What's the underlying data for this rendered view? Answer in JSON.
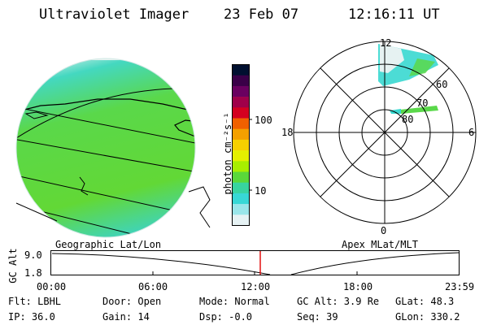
{
  "header": {
    "title": "Ultraviolet Imager",
    "date": "23 Feb 07",
    "time": "12:16:11 UT"
  },
  "colorbar": {
    "unit_label": "photon cm⁻²s⁻¹",
    "ticks": [
      "100",
      "10"
    ],
    "colors": [
      "#001030",
      "#3a0048",
      "#6a0060",
      "#a0004a",
      "#d40020",
      "#f06000",
      "#f4a000",
      "#f6d000",
      "#e4f000",
      "#a8ee00",
      "#5ad83a",
      "#38d4a0",
      "#38d8d6",
      "#9ae6ea",
      "#e6f2f4"
    ]
  },
  "panels": {
    "geo_label": "Geographic Lat/Lon",
    "apex_label": "Apex MLat/MLT"
  },
  "polar": {
    "mlt_top": "12",
    "mlt_left": "18",
    "mlt_right": "6",
    "mlt_bottom": "0",
    "lat_rings": [
      "60",
      "70",
      "80"
    ]
  },
  "altitude_plot": {
    "ylabel": "GC Alt",
    "y_ticks": [
      "9.0",
      "1.8"
    ],
    "x_ticks": [
      "00:00",
      "06:00",
      "12:00",
      "18:00",
      "23:59"
    ],
    "current_time_marker_color": "#e00000"
  },
  "status": {
    "flt": "Flt: LBHL",
    "ip": "IP: 36.0",
    "door": "Door: Open",
    "gain": "Gain: 14",
    "mode": "Mode: Normal",
    "dsp": "Dsp:   -0.0",
    "gcalt": "GC Alt: 3.9 Re",
    "seq": "Seq: 39",
    "glat": "GLat:  48.3",
    "glon": "GLon: 330.2"
  }
}
